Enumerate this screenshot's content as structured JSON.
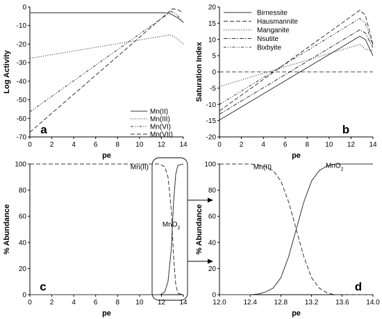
{
  "chart_data": [
    {
      "panel": "a",
      "type": "line",
      "xlabel": "pe",
      "ylabel": "Log Activity",
      "xlim": [
        0,
        14
      ],
      "ylim": [
        -70,
        0
      ],
      "xticks": [
        "0",
        "2",
        "4",
        "6",
        "8",
        "10",
        "12",
        "14"
      ],
      "yticks": [
        "0",
        "-10",
        "-20",
        "-30",
        "-40",
        "-50",
        "-60",
        "-70"
      ],
      "legend_position": "bottom-right",
      "series": [
        {
          "name": "Mn(II)",
          "style": "solid",
          "x": [
            0,
            12.3,
            12.7,
            13.0,
            13.5,
            14.0
          ],
          "y": [
            -3.2,
            -3.2,
            -3.4,
            -4.2,
            -6.0,
            -8.2
          ]
        },
        {
          "name": "Mn(III)",
          "style": "dotted",
          "x": [
            0,
            12.8,
            13.3,
            14.0
          ],
          "y": [
            -27.7,
            -15.0,
            -16.5,
            -20.0
          ]
        },
        {
          "name": "Mn(VI)",
          "style": "dashdotdot",
          "x": [
            0,
            12.9,
            13.3,
            14.0
          ],
          "y": [
            -56.5,
            -2.5,
            -3.5,
            -8.5
          ]
        },
        {
          "name": "Mn(VII)",
          "style": "dashed",
          "x": [
            0,
            13.0,
            13.4,
            14.0
          ],
          "y": [
            -67.5,
            -1.0,
            -1.3,
            -3.0
          ]
        }
      ]
    },
    {
      "panel": "b",
      "type": "line",
      "xlabel": "pe",
      "ylabel": "Saturation Index",
      "xlim": [
        0,
        14
      ],
      "ylim": [
        -20,
        20
      ],
      "xticks": [
        "0",
        "2",
        "4",
        "6",
        "8",
        "10",
        "12",
        "14"
      ],
      "yticks": [
        "20",
        "15",
        "10",
        "5",
        "0",
        "-5",
        "-10",
        "-15",
        "-20"
      ],
      "legend_position": "top-left",
      "zero_line": true,
      "series": [
        {
          "name": "Birnessite",
          "style": "solid",
          "x": [
            0,
            12.8,
            13.3,
            14.0
          ],
          "y": [
            -14.8,
            11.0,
            10.0,
            5.0
          ]
        },
        {
          "name": "Hausmannite",
          "style": "dashed",
          "x": [
            0,
            12.8,
            13.3,
            14.0
          ],
          "y": [
            -12.0,
            19.0,
            17.5,
            8.5
          ]
        },
        {
          "name": "Manganite",
          "style": "dotted",
          "x": [
            0,
            12.8,
            13.3,
            14.0
          ],
          "y": [
            -4.5,
            8.5,
            7.0,
            6.5
          ]
        },
        {
          "name": "Nsutite",
          "style": "dashdot",
          "x": [
            0,
            12.8,
            13.3,
            14.0
          ],
          "y": [
            -13.0,
            13.0,
            12.0,
            7.5
          ]
        },
        {
          "name": "Bixbyite",
          "style": "dashdotdot",
          "x": [
            0,
            12.8,
            13.3,
            14.0
          ],
          "y": [
            -10.0,
            16.5,
            15.0,
            8.0
          ]
        }
      ]
    },
    {
      "panel": "c",
      "type": "line",
      "xlabel": "pe",
      "ylabel": "% Abundance",
      "xlim": [
        0,
        14
      ],
      "ylim": [
        0,
        100
      ],
      "xticks": [
        "0",
        "2",
        "4",
        "6",
        "8",
        "10",
        "12",
        "14"
      ],
      "yticks": [
        "0",
        "20",
        "40",
        "60",
        "80",
        "100"
      ],
      "annotations": [
        "Mn(II)",
        "MnO"
      ],
      "annotation_subscripts": [
        "",
        "2"
      ],
      "series": [
        {
          "name": "Mn(II)",
          "style": "dashed",
          "x": [
            0,
            11.8,
            12.3,
            12.6,
            12.9,
            13.1,
            13.3,
            13.5,
            14.0
          ],
          "y": [
            100,
            100,
            98,
            90,
            65,
            30,
            8,
            1,
            0
          ]
        },
        {
          "name": "MnO2",
          "style": "solid",
          "x": [
            0,
            11.9,
            12.3,
            12.6,
            12.9,
            13.1,
            13.3,
            13.5,
            14.0
          ],
          "y": [
            0,
            0,
            2,
            10,
            35,
            70,
            92,
            99,
            100
          ]
        }
      ]
    },
    {
      "panel": "d",
      "type": "line",
      "xlabel": "pe",
      "ylabel": "% Abundance",
      "xlim": [
        12.0,
        14.0
      ],
      "ylim": [
        0,
        100
      ],
      "xticks": [
        "12.0",
        "12.4",
        "12.8",
        "13.2",
        "13.6",
        "14.0"
      ],
      "yticks": [
        "0",
        "20",
        "40",
        "60",
        "80",
        "100"
      ],
      "annotations": [
        "Mn(II)",
        "MnO"
      ],
      "annotation_subscripts": [
        "",
        "2"
      ],
      "series": [
        {
          "name": "Mn(II)",
          "style": "dashed",
          "x": [
            12.0,
            12.4,
            12.5,
            12.6,
            12.7,
            12.8,
            12.9,
            13.0,
            13.1,
            13.2,
            13.3,
            13.4,
            13.5,
            14.0
          ],
          "y": [
            100,
            100,
            99.5,
            98,
            95,
            87,
            71,
            50,
            29,
            13,
            5,
            1.5,
            0,
            0
          ]
        },
        {
          "name": "MnO2",
          "style": "solid",
          "x": [
            12.0,
            12.4,
            12.5,
            12.6,
            12.7,
            12.8,
            12.9,
            13.0,
            13.1,
            13.2,
            13.3,
            13.4,
            13.5,
            14.0
          ],
          "y": [
            0,
            0,
            0.5,
            2,
            5,
            13,
            29,
            50,
            71,
            87,
            95,
            98.5,
            100,
            100
          ]
        }
      ]
    }
  ]
}
